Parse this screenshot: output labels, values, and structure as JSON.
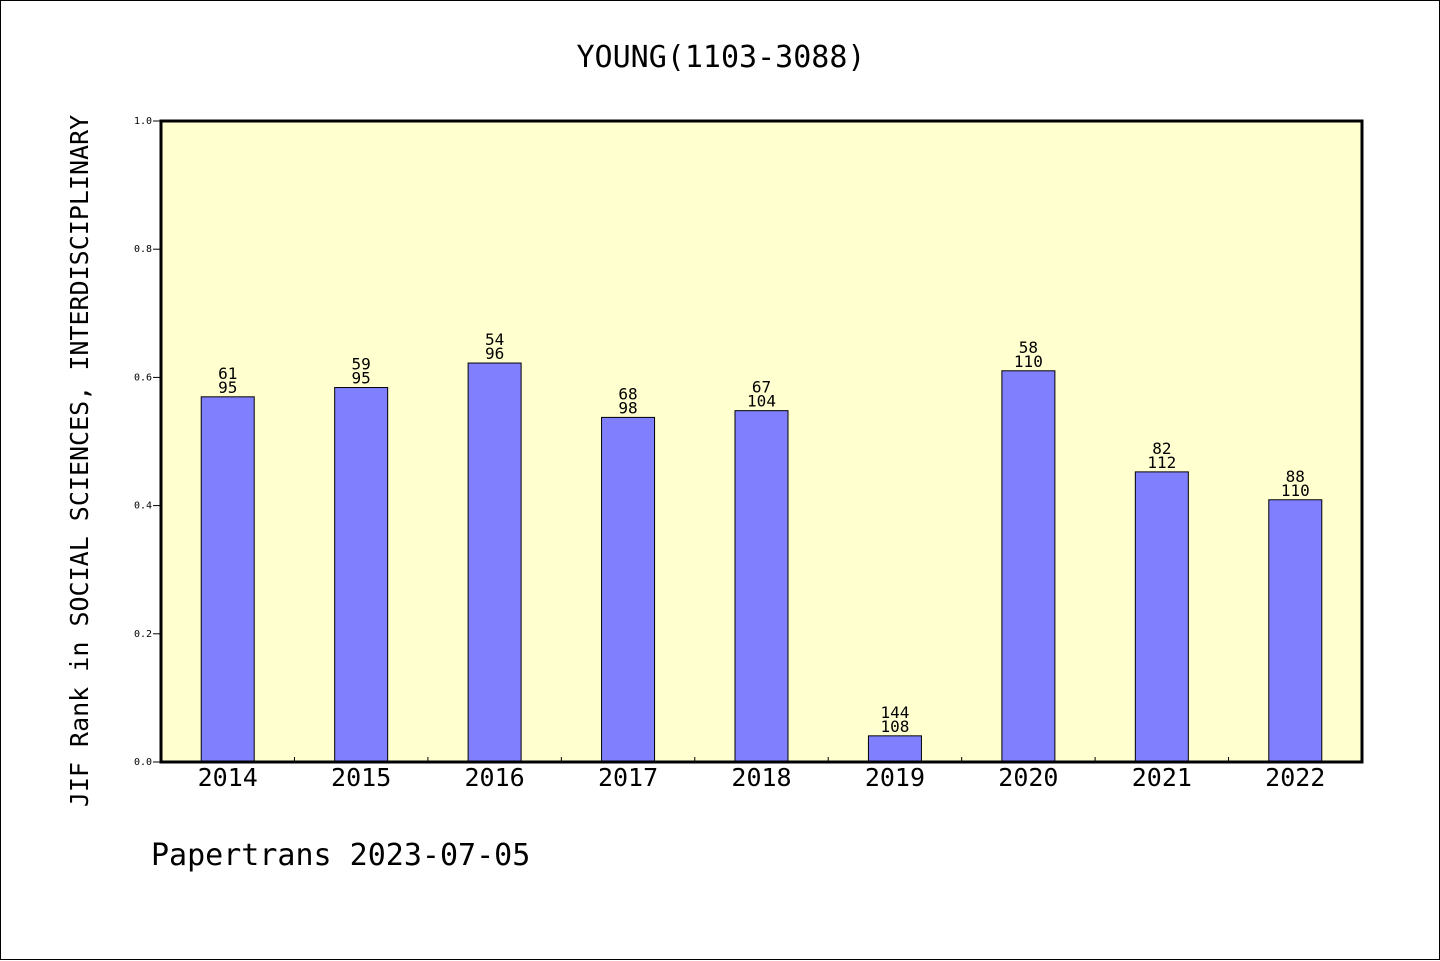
{
  "chart_data": {
    "type": "bar",
    "title": "YOUNG(1103-3088)",
    "xlabel": "",
    "ylabel": "JIF Rank in SOCIAL SCIENCES, INTERDISCIPLINARY",
    "ylim": [
      0,
      1.0
    ],
    "yticks": [
      "0.0",
      "0.2",
      "0.4",
      "0.6",
      "0.8",
      "1.0"
    ],
    "categories": [
      "2014",
      "2015",
      "2016",
      "2017",
      "2018",
      "2019",
      "2020",
      "2021",
      "2022"
    ],
    "values": [
      0.5697,
      0.5842,
      0.6224,
      0.5376,
      0.5481,
      0.0408,
      0.6103,
      0.4526,
      0.4091
    ],
    "labels": [
      {
        "rank": "61",
        "total": "95"
      },
      {
        "rank": "59",
        "total": "95"
      },
      {
        "rank": "54",
        "total": "96"
      },
      {
        "rank": "68",
        "total": "98"
      },
      {
        "rank": "67",
        "total": "104"
      },
      {
        "rank": "144",
        "total": "108"
      },
      {
        "rank": "58",
        "total": "110"
      },
      {
        "rank": "82",
        "total": "112"
      },
      {
        "rank": "88",
        "total": "110"
      }
    ],
    "grid": false,
    "colors": {
      "plot_background": "#ffffd0",
      "bar_fill": "#8080ff",
      "bar_stroke": "#000000",
      "axis": "#000000"
    }
  },
  "footer": {
    "text": "Papertrans 2023-07-05"
  }
}
